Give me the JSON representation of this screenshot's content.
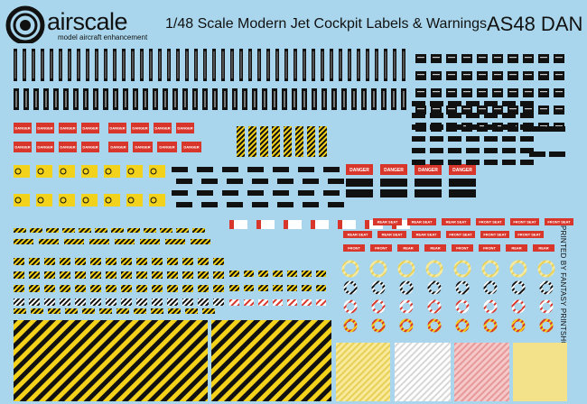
{
  "header": {
    "brand": "airscale",
    "tagline": "model aircraft enhancement",
    "title": "1/48 Scale Modern Jet Cockpit Labels & Warnings",
    "product_code": "AS48 DAN"
  },
  "side_credit": "PRINTED BY FANTASY PRINTSHOP",
  "decal_labels": {
    "danger": "DANGER",
    "rear_seat": "REAR SEAT",
    "front_seat": "FRONT SEAT",
    "front": "FRONT",
    "rear": "REAR"
  },
  "colors": {
    "background": "#a9d6ec",
    "black": "#111111",
    "yellow": "#f2d21a",
    "red": "#d9362b",
    "stripe_yellow": "#f4d21c",
    "pale_yellow": "#f3e28a",
    "pink_panel": "#f1b7b7",
    "white": "#ffffff"
  }
}
